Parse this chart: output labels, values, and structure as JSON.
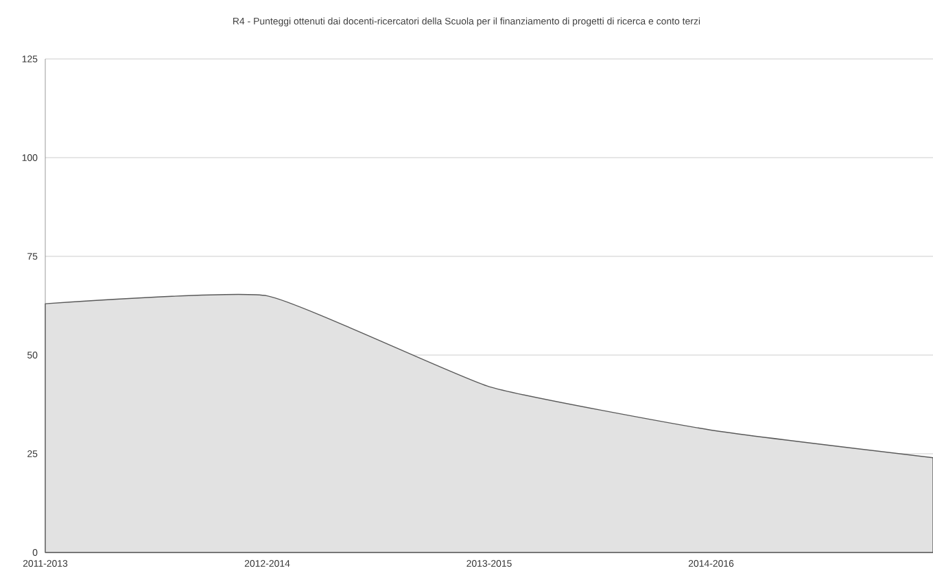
{
  "chart_data": {
    "type": "area",
    "title": "R4 - Punteggi ottenuti dai docenti-ricercatori della Scuola per il finanziamento di progetti di ricerca e conto terzi",
    "categories": [
      "2011-2013",
      "2012-2014",
      "2013-2015",
      "2014-2016",
      null
    ],
    "series": [
      {
        "color": "#e2e2e2",
        "values": [
          63,
          65,
          42,
          31,
          24
        ]
      }
    ],
    "ylim": [
      0,
      125
    ],
    "yticks": [
      0,
      25,
      50,
      75,
      100,
      125
    ],
    "grid": "y"
  }
}
